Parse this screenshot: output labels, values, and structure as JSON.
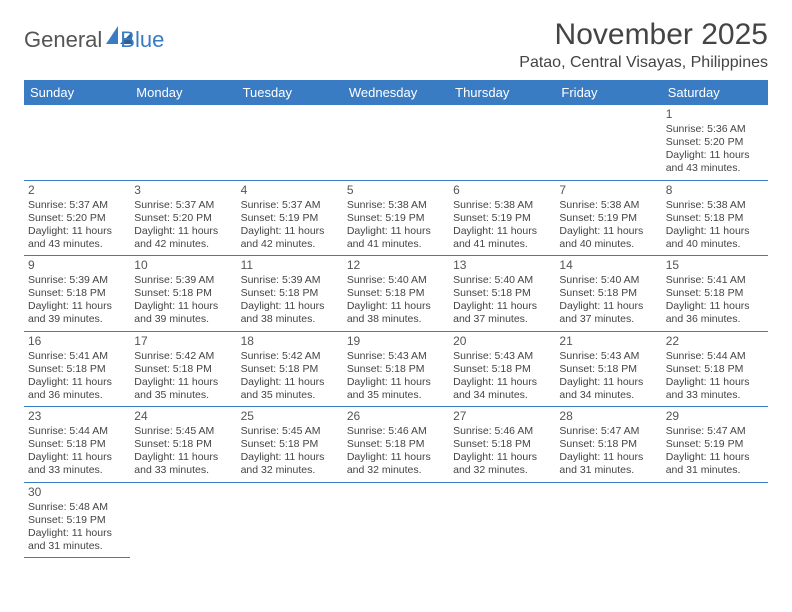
{
  "brand": {
    "general": "General",
    "blue": "Blue"
  },
  "title": "November 2025",
  "location": "Patao, Central Visayas, Philippines",
  "colors": {
    "accent": "#3a7cc4",
    "text": "#444444",
    "bg": "#ffffff"
  },
  "weekdays": [
    "Sunday",
    "Monday",
    "Tuesday",
    "Wednesday",
    "Thursday",
    "Friday",
    "Saturday"
  ],
  "layout": {
    "first_weekday_index": 6,
    "days_in_month": 30
  },
  "days": {
    "1": {
      "sunrise": "5:36 AM",
      "sunset": "5:20 PM",
      "daylight": "11 hours and 43 minutes."
    },
    "2": {
      "sunrise": "5:37 AM",
      "sunset": "5:20 PM",
      "daylight": "11 hours and 43 minutes."
    },
    "3": {
      "sunrise": "5:37 AM",
      "sunset": "5:20 PM",
      "daylight": "11 hours and 42 minutes."
    },
    "4": {
      "sunrise": "5:37 AM",
      "sunset": "5:19 PM",
      "daylight": "11 hours and 42 minutes."
    },
    "5": {
      "sunrise": "5:38 AM",
      "sunset": "5:19 PM",
      "daylight": "11 hours and 41 minutes."
    },
    "6": {
      "sunrise": "5:38 AM",
      "sunset": "5:19 PM",
      "daylight": "11 hours and 41 minutes."
    },
    "7": {
      "sunrise": "5:38 AM",
      "sunset": "5:19 PM",
      "daylight": "11 hours and 40 minutes."
    },
    "8": {
      "sunrise": "5:38 AM",
      "sunset": "5:18 PM",
      "daylight": "11 hours and 40 minutes."
    },
    "9": {
      "sunrise": "5:39 AM",
      "sunset": "5:18 PM",
      "daylight": "11 hours and 39 minutes."
    },
    "10": {
      "sunrise": "5:39 AM",
      "sunset": "5:18 PM",
      "daylight": "11 hours and 39 minutes."
    },
    "11": {
      "sunrise": "5:39 AM",
      "sunset": "5:18 PM",
      "daylight": "11 hours and 38 minutes."
    },
    "12": {
      "sunrise": "5:40 AM",
      "sunset": "5:18 PM",
      "daylight": "11 hours and 38 minutes."
    },
    "13": {
      "sunrise": "5:40 AM",
      "sunset": "5:18 PM",
      "daylight": "11 hours and 37 minutes."
    },
    "14": {
      "sunrise": "5:40 AM",
      "sunset": "5:18 PM",
      "daylight": "11 hours and 37 minutes."
    },
    "15": {
      "sunrise": "5:41 AM",
      "sunset": "5:18 PM",
      "daylight": "11 hours and 36 minutes."
    },
    "16": {
      "sunrise": "5:41 AM",
      "sunset": "5:18 PM",
      "daylight": "11 hours and 36 minutes."
    },
    "17": {
      "sunrise": "5:42 AM",
      "sunset": "5:18 PM",
      "daylight": "11 hours and 35 minutes."
    },
    "18": {
      "sunrise": "5:42 AM",
      "sunset": "5:18 PM",
      "daylight": "11 hours and 35 minutes."
    },
    "19": {
      "sunrise": "5:43 AM",
      "sunset": "5:18 PM",
      "daylight": "11 hours and 35 minutes."
    },
    "20": {
      "sunrise": "5:43 AM",
      "sunset": "5:18 PM",
      "daylight": "11 hours and 34 minutes."
    },
    "21": {
      "sunrise": "5:43 AM",
      "sunset": "5:18 PM",
      "daylight": "11 hours and 34 minutes."
    },
    "22": {
      "sunrise": "5:44 AM",
      "sunset": "5:18 PM",
      "daylight": "11 hours and 33 minutes."
    },
    "23": {
      "sunrise": "5:44 AM",
      "sunset": "5:18 PM",
      "daylight": "11 hours and 33 minutes."
    },
    "24": {
      "sunrise": "5:45 AM",
      "sunset": "5:18 PM",
      "daylight": "11 hours and 33 minutes."
    },
    "25": {
      "sunrise": "5:45 AM",
      "sunset": "5:18 PM",
      "daylight": "11 hours and 32 minutes."
    },
    "26": {
      "sunrise": "5:46 AM",
      "sunset": "5:18 PM",
      "daylight": "11 hours and 32 minutes."
    },
    "27": {
      "sunrise": "5:46 AM",
      "sunset": "5:18 PM",
      "daylight": "11 hours and 32 minutes."
    },
    "28": {
      "sunrise": "5:47 AM",
      "sunset": "5:18 PM",
      "daylight": "11 hours and 31 minutes."
    },
    "29": {
      "sunrise": "5:47 AM",
      "sunset": "5:19 PM",
      "daylight": "11 hours and 31 minutes."
    },
    "30": {
      "sunrise": "5:48 AM",
      "sunset": "5:19 PM",
      "daylight": "11 hours and 31 minutes."
    }
  },
  "labels": {
    "sunrise": "Sunrise: ",
    "sunset": "Sunset: ",
    "daylight": "Daylight: "
  }
}
